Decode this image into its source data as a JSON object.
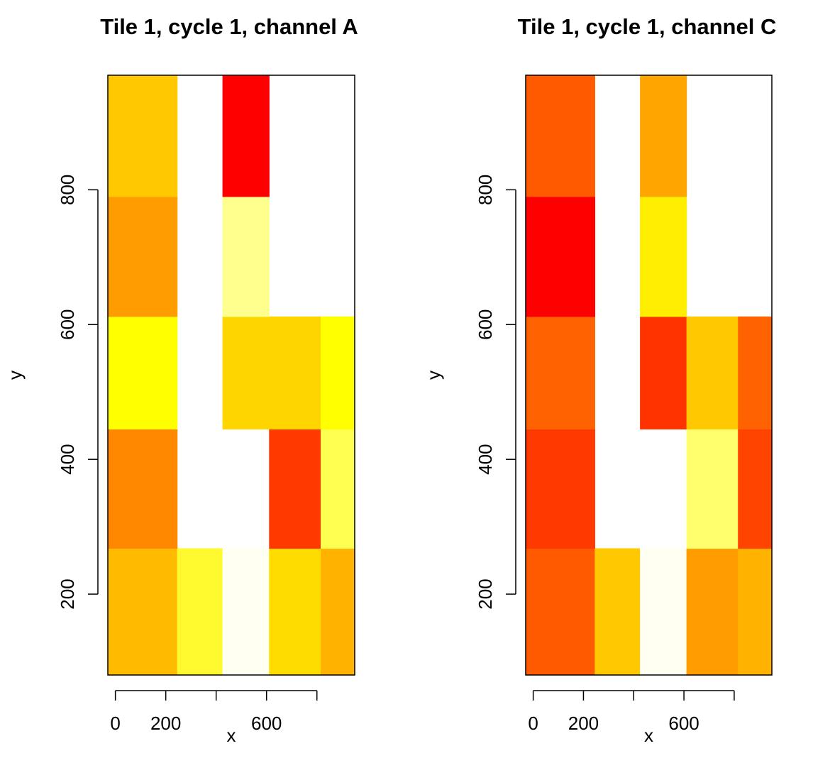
{
  "chart_data": [
    {
      "type": "heatmap",
      "title": "Tile 1, cycle 1, channel A",
      "xlabel": "x",
      "ylabel": "y",
      "x_ticks": [
        0,
        200,
        400,
        600,
        800
      ],
      "x_tick_labels": [
        "0",
        "200",
        "",
        "600",
        ""
      ],
      "y_ticks": [
        200,
        400,
        600,
        800
      ],
      "y_tick_labels": [
        "200",
        "400",
        "600",
        "800"
      ],
      "xlim": [
        -30,
        950
      ],
      "ylim": [
        80,
        970
      ],
      "x_edges": [
        -30,
        245,
        425,
        610,
        815,
        950
      ],
      "y_edges": [
        80,
        268,
        445,
        612,
        790,
        970
      ],
      "cells": [
        [
          "#FFBB00",
          "#FFF92F",
          "#FFFFF2",
          "#FFDC00",
          "#FFB200"
        ],
        [
          "#FF8800",
          null,
          null,
          "#FF3A00",
          "#FFFF52"
        ],
        [
          "#FFFF00",
          null,
          "#FFD500",
          "#FFD500",
          "#FFFF00"
        ],
        [
          "#FF9C00",
          null,
          "#FFFF8E",
          null,
          null
        ],
        [
          "#FFC800",
          null,
          "#FF0000",
          null,
          null
        ]
      ]
    },
    {
      "type": "heatmap",
      "title": "Tile 1, cycle 1, channel C",
      "xlabel": "x",
      "ylabel": "y",
      "x_ticks": [
        0,
        200,
        400,
        600,
        800
      ],
      "x_tick_labels": [
        "0",
        "200",
        "",
        "600",
        ""
      ],
      "y_ticks": [
        200,
        400,
        600,
        800
      ],
      "y_tick_labels": [
        "200",
        "400",
        "600",
        "800"
      ],
      "xlim": [
        -30,
        950
      ],
      "ylim": [
        80,
        970
      ],
      "x_edges": [
        -30,
        245,
        425,
        610,
        815,
        950
      ],
      "y_edges": [
        80,
        268,
        445,
        612,
        790,
        970
      ],
      "cells": [
        [
          "#FF5A00",
          "#FFC800",
          "#FFFFF2",
          "#FF9C00",
          "#FFB200"
        ],
        [
          "#FF3A00",
          null,
          null,
          "#FFFF6E",
          "#FF4400"
        ],
        [
          "#FF6200",
          null,
          "#FF3300",
          "#FFC800",
          "#FF6200"
        ],
        [
          "#FF0000",
          null,
          "#FFEE00",
          null,
          null
        ],
        [
          "#FF5A00",
          null,
          "#FFA500",
          null,
          null
        ]
      ]
    }
  ]
}
